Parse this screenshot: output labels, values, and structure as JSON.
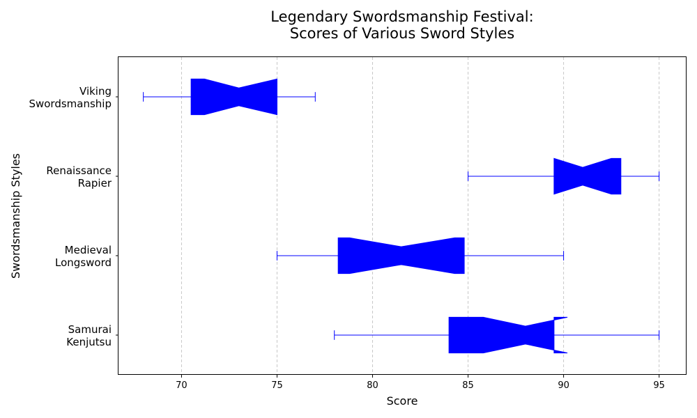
{
  "chart_data": {
    "type": "boxplot",
    "orientation": "horizontal",
    "notched": true,
    "title": [
      "Legendary Swordsmanship Festival:",
      "Scores of Various Sword Styles"
    ],
    "xlabel": "Score",
    "ylabel": "Swordsmanship Styles",
    "xlim": [
      66.7,
      96.4
    ],
    "xticks": [
      70,
      75,
      80,
      85,
      90,
      95
    ],
    "grid": "x-dashed",
    "box_color": "#0000ff",
    "grid_color": "#c8c8c8",
    "categories": [
      {
        "label_lines": [
          "Samurai",
          "Kenjutsu"
        ],
        "whisker_low": 78,
        "q1": 84,
        "median": 88,
        "q3": 89.5,
        "whisker_high": 95,
        "notch_low": 85.8,
        "notch_high": 90.2
      },
      {
        "label_lines": [
          "Medieval",
          "Longsword"
        ],
        "whisker_low": 75,
        "q1": 78.2,
        "median": 81.5,
        "q3": 84.8,
        "whisker_high": 90,
        "notch_low": 78.8,
        "notch_high": 84.3
      },
      {
        "label_lines": [
          "Renaissance",
          "Rapier"
        ],
        "whisker_low": 85,
        "q1": 89.5,
        "median": 91,
        "q3": 93,
        "whisker_high": 95,
        "notch_low": 89.5,
        "notch_high": 92.5
      },
      {
        "label_lines": [
          "Viking",
          "Swordsmanship"
        ],
        "whisker_low": 68,
        "q1": 70.5,
        "median": 73,
        "q3": 75,
        "whisker_high": 77,
        "notch_low": 71.2,
        "notch_high": 75
      }
    ]
  }
}
